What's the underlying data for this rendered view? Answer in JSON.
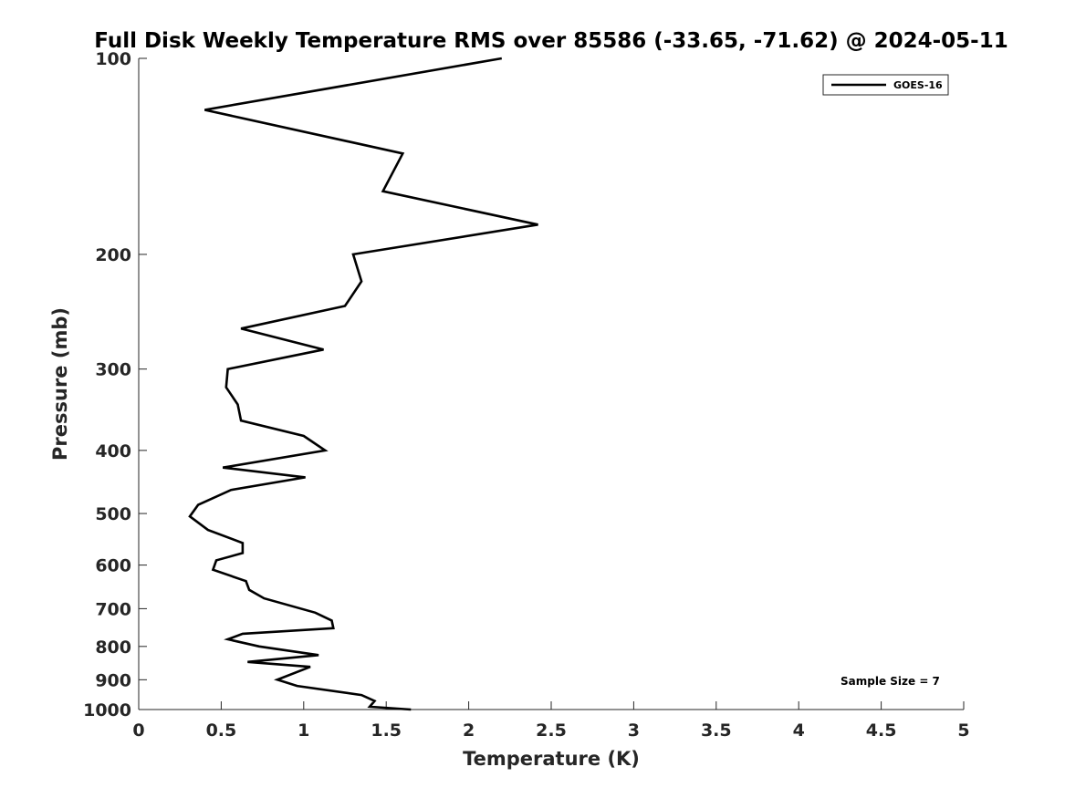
{
  "chart_data": {
    "type": "line",
    "title": "Full Disk Weekly Temperature RMS over 85586 (-33.65, -71.62) @ 2024-05-11",
    "xlabel": "Temperature (K)",
    "ylabel": "Pressure (mb)",
    "xlim": [
      0,
      5
    ],
    "ylim": [
      100,
      1000
    ],
    "y_scale": "log",
    "y_reversed": true,
    "grid": false,
    "legend_position": "top-right",
    "x_ticks": [
      0,
      0.5,
      1,
      1.5,
      2,
      2.5,
      3,
      3.5,
      4,
      4.5,
      5
    ],
    "x_tick_labels": [
      "0",
      "0.5",
      "1",
      "1.5",
      "2",
      "2.5",
      "3",
      "3.5",
      "4",
      "4.5",
      "5"
    ],
    "y_ticks": [
      100,
      200,
      300,
      400,
      500,
      600,
      700,
      800,
      900,
      1000
    ],
    "y_tick_labels": [
      "100",
      "200",
      "300",
      "400",
      "500",
      "600",
      "700",
      "800",
      "900",
      "1000"
    ],
    "series": [
      {
        "name": "GOES-16",
        "color": "#000000",
        "points": [
          [
            2.2,
            100
          ],
          [
            0.4,
            120
          ],
          [
            1.6,
            140
          ],
          [
            1.48,
            160
          ],
          [
            2.42,
            180
          ],
          [
            1.3,
            200
          ],
          [
            1.35,
            220
          ],
          [
            1.25,
            240
          ],
          [
            0.62,
            260
          ],
          [
            1.12,
            280
          ],
          [
            0.54,
            300
          ],
          [
            0.53,
            320
          ],
          [
            0.6,
            340
          ],
          [
            0.62,
            360
          ],
          [
            1.0,
            380
          ],
          [
            1.13,
            400
          ],
          [
            0.51,
            425
          ],
          [
            1.01,
            440
          ],
          [
            0.56,
            460
          ],
          [
            0.36,
            485
          ],
          [
            0.31,
            505
          ],
          [
            0.42,
            530
          ],
          [
            0.63,
            555
          ],
          [
            0.63,
            575
          ],
          [
            0.47,
            590
          ],
          [
            0.45,
            610
          ],
          [
            0.65,
            635
          ],
          [
            0.67,
            655
          ],
          [
            0.76,
            675
          ],
          [
            1.07,
            710
          ],
          [
            1.17,
            730
          ],
          [
            1.18,
            750
          ],
          [
            0.63,
            765
          ],
          [
            0.54,
            780
          ],
          [
            0.73,
            800
          ],
          [
            1.09,
            825
          ],
          [
            0.66,
            845
          ],
          [
            1.04,
            860
          ],
          [
            0.84,
            900
          ],
          [
            0.96,
            920
          ],
          [
            1.35,
            950
          ],
          [
            1.43,
            970
          ],
          [
            1.4,
            990
          ],
          [
            1.65,
            1000
          ]
        ]
      }
    ],
    "annotations": [
      "Sample Size = 7"
    ]
  }
}
